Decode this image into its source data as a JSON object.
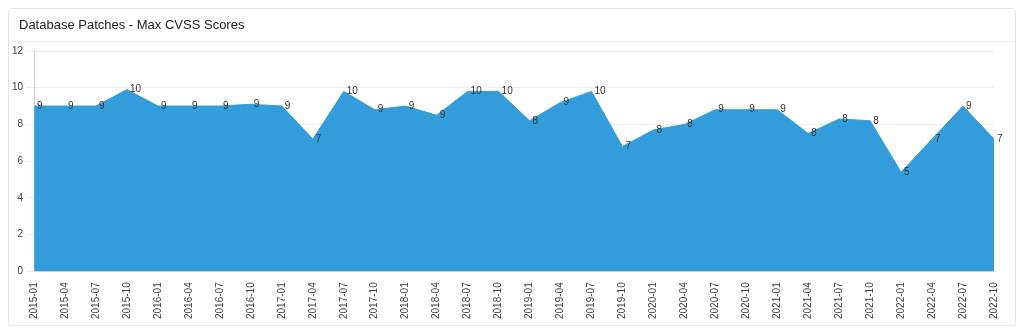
{
  "chart_data": {
    "type": "area",
    "title": "Database Patches - Max CVSS Scores",
    "categories": [
      "2015-01",
      "2015-04",
      "2015-07",
      "2015-10",
      "2016-01",
      "2016-04",
      "2016-07",
      "2016-10",
      "2017-01",
      "2017-04",
      "2017-07",
      "2017-10",
      "2018-01",
      "2018-04",
      "2018-07",
      "2018-10",
      "2019-01",
      "2019-04",
      "2019-07",
      "2019-10",
      "2020-01",
      "2020-04",
      "2020-07",
      "2020-10",
      "2021-01",
      "2021-04",
      "2021-07",
      "2021-10",
      "2022-01",
      "2022-04",
      "2022-07",
      "2022-10"
    ],
    "series": [
      {
        "color": "#339ddb",
        "values": [
          9,
          9,
          9,
          9.9,
          9,
          9,
          9,
          9.1,
          9,
          7.2,
          9.8,
          8.8,
          9,
          8.5,
          9.8,
          9.8,
          8.2,
          9.2,
          9.8,
          6.8,
          7.7,
          8,
          8.8,
          8.8,
          8.8,
          7.5,
          8.3,
          8.2,
          5.4,
          7.2,
          9,
          7.2
        ],
        "value_labels": [
          "9",
          "9",
          "9",
          "10",
          "9",
          "9",
          "9",
          "9",
          "9",
          "7",
          "10",
          "9",
          "9",
          "9",
          "10",
          "10",
          "8",
          "9",
          "10",
          "7",
          "8",
          "8",
          "9",
          "9",
          "9",
          "8",
          "8",
          "8",
          "5",
          "7",
          "9",
          "7"
        ]
      }
    ],
    "ylim": [
      0,
      12
    ],
    "yticks": [
      0,
      2,
      4,
      6,
      8,
      10,
      12
    ],
    "grid": "y",
    "legend": false
  }
}
